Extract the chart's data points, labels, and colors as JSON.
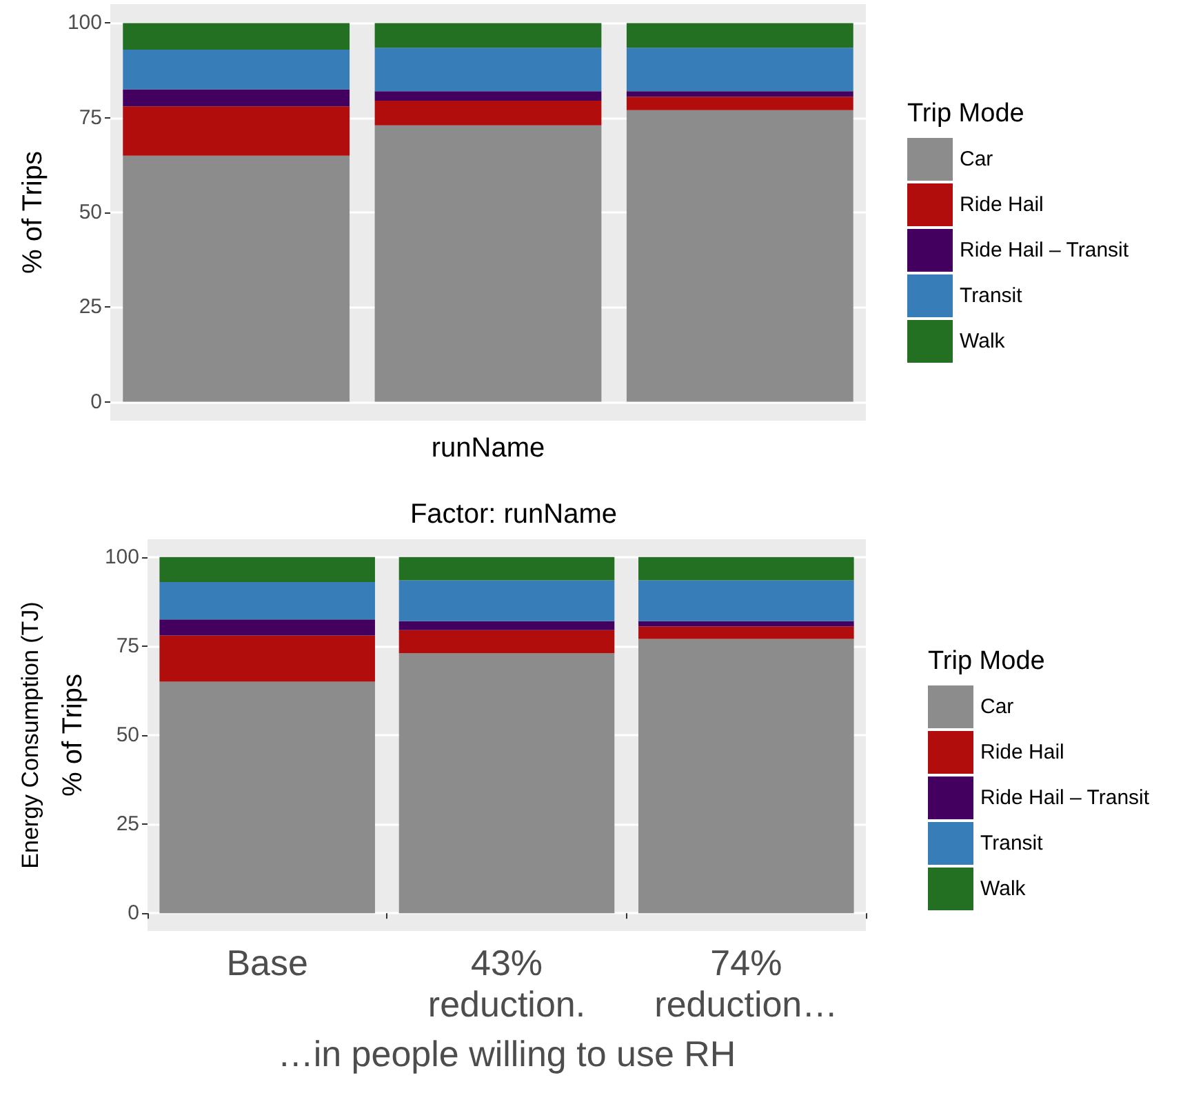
{
  "chart_data": [
    {
      "type": "bar",
      "stacked": true,
      "categories": [
        null,
        null,
        null
      ],
      "xlabel": "runName",
      "ylabel": "% of Trips",
      "legend_title": "Trip Mode",
      "ylim": [
        -5,
        105
      ],
      "yticks": [
        0,
        25,
        50,
        75,
        100
      ],
      "grid": "y",
      "legend": "right",
      "tick_labels": "y",
      "series": [
        {
          "name": "Car",
          "color": "#8c8c8c",
          "values": [
            65,
            73,
            77
          ]
        },
        {
          "name": "Ride Hail",
          "color": "#b10d0d",
          "values": [
            13,
            6.5,
            3.5
          ]
        },
        {
          "name": "Ride Hail – Transit",
          "color": "#44005f",
          "values": [
            4.5,
            2.5,
            1.5
          ]
        },
        {
          "name": "Transit",
          "color": "#377db8",
          "values": [
            10.5,
            11.5,
            11.5
          ]
        },
        {
          "name": "Walk",
          "color": "#237023",
          "values": [
            7,
            6.5,
            6.5
          ]
        }
      ]
    },
    {
      "type": "bar",
      "stacked": true,
      "title": "Factor: runName",
      "categories": [
        "Base",
        "43% reduction.",
        "74% reduction…"
      ],
      "xlabel": "…in people willing to use RH",
      "ylabel": "% of Trips",
      "legend_title": "Trip Mode",
      "ylim": [
        -5,
        105
      ],
      "yticks": [
        0,
        25,
        50,
        75,
        100
      ],
      "grid": "y",
      "legend": "right",
      "annotations": [
        "Energy Consumption (TJ)"
      ],
      "series": [
        {
          "name": "Car",
          "color": "#8c8c8c",
          "values": [
            65,
            73,
            77
          ]
        },
        {
          "name": "Ride Hail",
          "color": "#b10d0d",
          "values": [
            13,
            6.5,
            3.5
          ]
        },
        {
          "name": "Ride Hail – Transit",
          "color": "#44005f",
          "values": [
            4.5,
            2.5,
            1.5
          ]
        },
        {
          "name": "Transit",
          "color": "#377db8",
          "values": [
            10.5,
            11.5,
            11.5
          ]
        },
        {
          "name": "Walk",
          "color": "#237023",
          "values": [
            7,
            6.5,
            6.5
          ]
        }
      ]
    }
  ]
}
